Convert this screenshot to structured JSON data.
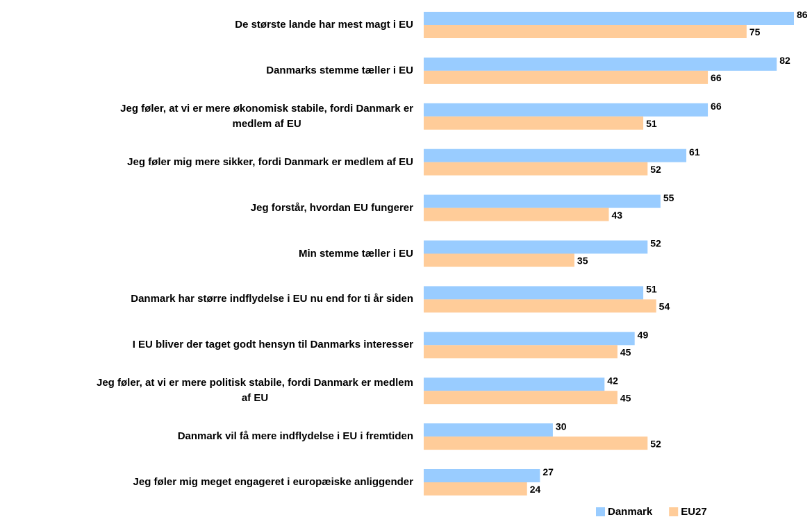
{
  "chart_data": {
    "type": "hbar",
    "categories": [
      "De største lande har mest magt i EU",
      "Danmarks stemme tæller i EU",
      "Jeg føler, at vi er mere økonomisk stabile, fordi Danmark er\nmedlem af EU",
      "Jeg føler mig mere sikker, fordi Danmark er medlem af EU",
      "Jeg forstår, hvordan EU fungerer",
      "Min stemme tæller i EU",
      "Danmark har større indflydelse i EU nu end for ti år siden",
      "I EU bliver der taget godt hensyn til Danmarks interesser",
      "Jeg føler, at vi er mere politisk stabile, fordi Danmark er medlem\naf EU",
      "Danmark vil få mere indflydelse i EU i fremtiden",
      "Jeg føler mig meget engageret i europæiske anliggender"
    ],
    "series": [
      {
        "name": "Danmark",
        "color": "#99ccff",
        "values": [
          86,
          82,
          66,
          61,
          55,
          52,
          51,
          49,
          42,
          30,
          27
        ]
      },
      {
        "name": "EU27",
        "color": "#ffcc99",
        "values": [
          75,
          66,
          51,
          52,
          43,
          35,
          54,
          45,
          45,
          52,
          24
        ]
      }
    ],
    "legend": "bottom-right"
  }
}
